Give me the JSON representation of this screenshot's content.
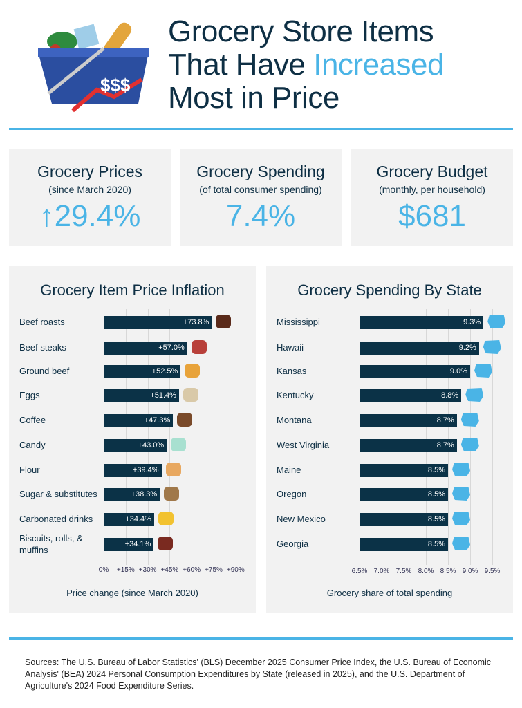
{
  "header": {
    "title_line1": "Grocery Store Items",
    "title_line2a": "That Have ",
    "title_line2b": "Increased",
    "title_line3": "Most in Price",
    "logo_text": "$$$"
  },
  "stats": [
    {
      "heading": "Grocery Prices",
      "sub": "(since March 2020)",
      "arrow": "↑",
      "value": "29.4%"
    },
    {
      "heading": "Grocery Spending",
      "sub": "(of total consumer spending)",
      "value": "7.4%"
    },
    {
      "heading": "Grocery Budget",
      "sub": "(monthly, per household)",
      "value": "$681"
    }
  ],
  "colors": {
    "navy": "#0e2f44",
    "accent": "#4ab4e6",
    "bar": "#0b3247",
    "panel": "#f2f2f2"
  },
  "chart_data": [
    {
      "type": "bar",
      "orientation": "horizontal",
      "title": "Grocery Item Price Inflation",
      "xlabel": "Price change (since March 2020)",
      "categories": [
        "Beef roasts",
        "Beef steaks",
        "Ground beef",
        "Eggs",
        "Coffee",
        "Candy",
        "Flour",
        "Sugar & substitutes",
        "Carbonated drinks",
        "Biscuits, rolls, & muffins"
      ],
      "values": [
        73.8,
        57.0,
        52.5,
        51.4,
        47.3,
        43.0,
        39.4,
        38.3,
        34.4,
        34.1
      ],
      "labels": [
        "+73.8%",
        "+57.0%",
        "+52.5%",
        "+51.4%",
        "+47.3%",
        "+43.0%",
        "+39.4%",
        "+38.3%",
        "+34.4%",
        "+34.1%"
      ],
      "icons": [
        "steak-icon",
        "t-bone-icon",
        "burger-icon",
        "egg-carton-icon",
        "coffee-cup-icon",
        "candy-icon",
        "flour-bag-icon",
        "sugar-sack-icon",
        "soda-can-icon",
        "muffin-icon"
      ],
      "xlim": [
        0,
        90
      ],
      "ticks": [
        "0%",
        "+15%",
        "+30%",
        "+45%",
        "+60%",
        "+75%",
        "+90%"
      ],
      "tick_values": [
        0,
        15,
        30,
        45,
        60,
        75,
        90
      ],
      "grid": true
    },
    {
      "type": "bar",
      "orientation": "horizontal",
      "title": "Grocery Spending By State",
      "xlabel": "Grocery share of total spending",
      "categories": [
        "Mississippi",
        "Hawaii",
        "Kansas",
        "Kentucky",
        "Montana",
        "West Virginia",
        "Maine",
        "Oregon",
        "New Mexico",
        "Georgia"
      ],
      "values": [
        9.3,
        9.2,
        9.0,
        8.8,
        8.7,
        8.7,
        8.5,
        8.5,
        8.5,
        8.5
      ],
      "labels": [
        "9.3%",
        "9.2%",
        "9.0%",
        "8.8%",
        "8.7%",
        "8.7%",
        "8.5%",
        "8.5%",
        "8.5%",
        "8.5%"
      ],
      "xlim": [
        6.5,
        9.5
      ],
      "ticks": [
        "6.5%",
        "7.0%",
        "7.5%",
        "8.0%",
        "8.5%",
        "9.0%",
        "9.5%"
      ],
      "tick_values": [
        6.5,
        7.0,
        7.5,
        8.0,
        8.5,
        9.0,
        9.5
      ],
      "grid": true
    }
  ],
  "footer": {
    "sources": "Sources: The U.S. Bureau of Labor Statistics' (BLS) December 2025 Consumer Price Index, the U.S. Bureau of Economic Analysis' (BEA) 2024 Personal Consumption Expenditures by State (released in 2025), and the U.S. Department of Agriculture's 2024 Food Expenditure Series."
  }
}
